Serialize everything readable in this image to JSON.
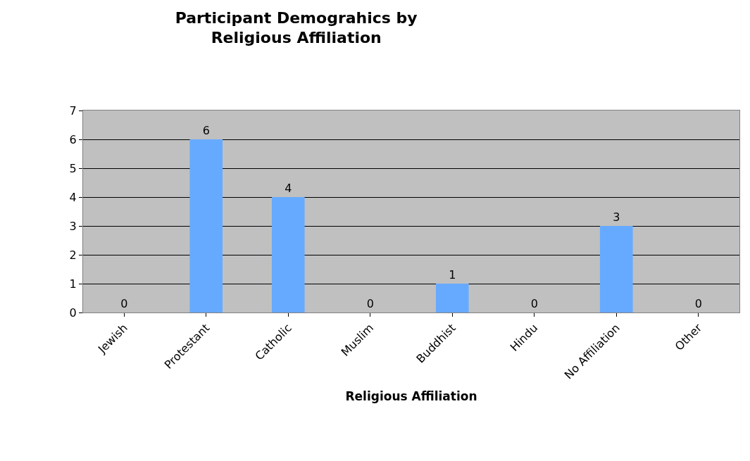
{
  "chart_data": {
    "type": "bar",
    "title": "Participant Demograhics by\nReligious Affiliation",
    "xlabel": "Religious Affiliation",
    "categories": [
      "Jewish",
      "Protestant",
      "Catholic",
      "Muslim",
      "Buddhist",
      "Hindu",
      "No Affiliation",
      "Other"
    ],
    "values": [
      0,
      6,
      4,
      0,
      1,
      0,
      3,
      0
    ],
    "color": "#66aaff",
    "ylim": [
      0,
      7
    ],
    "yticks": [
      0,
      1,
      2,
      3,
      4,
      5,
      6,
      7
    ],
    "grid": "y",
    "data_labels": true,
    "legend": false
  }
}
